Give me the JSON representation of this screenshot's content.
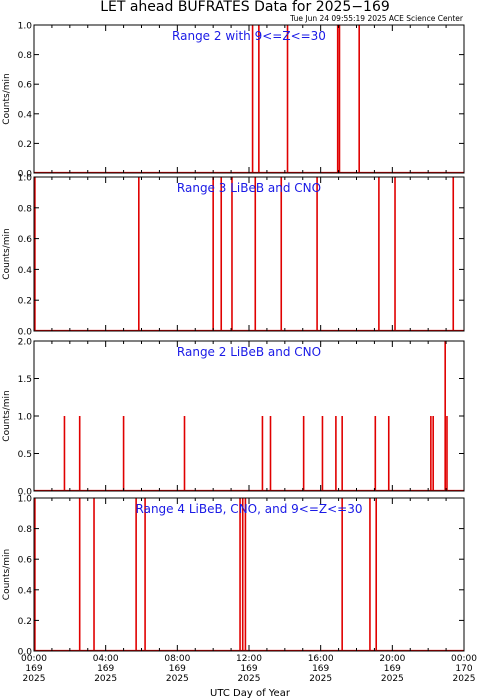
{
  "header": {
    "title": "LET ahead BUFRATES Data for 2025−169",
    "timestamp": "Tue Jun 24 09:55:19 2025 ACE Science Center"
  },
  "x_axis": {
    "label": "UTC Day of Year",
    "ticks": [
      {
        "time": "00:00",
        "doy": "169",
        "year": "2025",
        "hour": 0
      },
      {
        "time": "04:00",
        "doy": "169",
        "year": "2025",
        "hour": 4
      },
      {
        "time": "08:00",
        "doy": "169",
        "year": "2025",
        "hour": 8
      },
      {
        "time": "12:00",
        "doy": "169",
        "year": "2025",
        "hour": 12
      },
      {
        "time": "16:00",
        "doy": "169",
        "year": "2025",
        "hour": 16
      },
      {
        "time": "20:00",
        "doy": "169",
        "year": "2025",
        "hour": 20
      },
      {
        "time": "00:00",
        "doy": "170",
        "year": "2025",
        "hour": 24
      }
    ]
  },
  "colors": {
    "data": "#e00000",
    "panel_label": "#1a1ae6",
    "axes": "#000000"
  },
  "chart_data": [
    {
      "type": "bar",
      "panel_label": "Range 2 with 9<=Z<=30",
      "ylabel": "Counts/min",
      "xlim_hours": [
        0,
        24
      ],
      "ylim": [
        0,
        1.0
      ],
      "yticks": [
        "0.0",
        "0.2",
        "0.4",
        "0.6",
        "0.8",
        "1.0"
      ],
      "ytick_values": [
        0,
        0.2,
        0.4,
        0.6,
        0.8,
        1.0
      ],
      "spikes": [
        {
          "hour": 12.2,
          "value": 1
        },
        {
          "hour": 12.55,
          "value": 1
        },
        {
          "hour": 14.15,
          "value": 1
        },
        {
          "hour": 16.95,
          "value": 1
        },
        {
          "hour": 17.05,
          "value": 1
        },
        {
          "hour": 18.15,
          "value": 1
        }
      ]
    },
    {
      "type": "bar",
      "panel_label": "Range 3 LiBeB and CNO",
      "ylabel": "Counts/min",
      "xlim_hours": [
        0,
        24
      ],
      "ylim": [
        0,
        1.0
      ],
      "yticks": [
        "0.0",
        "0.2",
        "0.4",
        "0.6",
        "0.8",
        "1.0"
      ],
      "ytick_values": [
        0,
        0.2,
        0.4,
        0.6,
        0.8,
        1.0
      ],
      "spikes": [
        {
          "hour": 0.05,
          "value": 1
        },
        {
          "hour": 5.85,
          "value": 1
        },
        {
          "hour": 10.0,
          "value": 1
        },
        {
          "hour": 10.45,
          "value": 1
        },
        {
          "hour": 11.05,
          "value": 1
        },
        {
          "hour": 12.35,
          "value": 1
        },
        {
          "hour": 13.8,
          "value": 1
        },
        {
          "hour": 15.8,
          "value": 1
        },
        {
          "hour": 19.25,
          "value": 1
        },
        {
          "hour": 20.15,
          "value": 1
        },
        {
          "hour": 23.4,
          "value": 1
        }
      ]
    },
    {
      "type": "bar",
      "panel_label": "Range 2 LiBeB and CNO",
      "ylabel": "Counts/min",
      "xlim_hours": [
        0,
        24
      ],
      "ylim": [
        0,
        2.0
      ],
      "yticks": [
        "0.0",
        "0.5",
        "1.0",
        "1.5",
        "2.0"
      ],
      "ytick_values": [
        0,
        0.5,
        1.0,
        1.5,
        2.0
      ],
      "spikes": [
        {
          "hour": 1.7,
          "value": 1
        },
        {
          "hour": 2.55,
          "value": 1
        },
        {
          "hour": 5.0,
          "value": 1
        },
        {
          "hour": 8.4,
          "value": 1
        },
        {
          "hour": 12.75,
          "value": 1
        },
        {
          "hour": 13.2,
          "value": 1
        },
        {
          "hour": 15.05,
          "value": 1
        },
        {
          "hour": 16.1,
          "value": 1
        },
        {
          "hour": 16.85,
          "value": 1
        },
        {
          "hour": 17.2,
          "value": 1
        },
        {
          "hour": 19.05,
          "value": 1
        },
        {
          "hour": 19.8,
          "value": 1
        },
        {
          "hour": 22.15,
          "value": 1
        },
        {
          "hour": 22.28,
          "value": 1
        },
        {
          "hour": 22.95,
          "value": 2
        },
        {
          "hour": 23.05,
          "value": 1
        }
      ]
    },
    {
      "type": "bar",
      "panel_label": "Range 4 LiBeB, CNO, and 9<=Z<=30",
      "ylabel": "Counts/min",
      "xlim_hours": [
        0,
        24
      ],
      "ylim": [
        0,
        1.0
      ],
      "yticks": [
        "0.0",
        "0.2",
        "0.4",
        "0.6",
        "0.8",
        "1.0"
      ],
      "ytick_values": [
        0,
        0.2,
        0.4,
        0.6,
        0.8,
        1.0
      ],
      "spikes": [
        {
          "hour": 0.05,
          "value": 1
        },
        {
          "hour": 2.55,
          "value": 1
        },
        {
          "hour": 3.35,
          "value": 1
        },
        {
          "hour": 5.7,
          "value": 1
        },
        {
          "hour": 6.2,
          "value": 1
        },
        {
          "hour": 11.5,
          "value": 1
        },
        {
          "hour": 11.65,
          "value": 1
        },
        {
          "hour": 11.8,
          "value": 1
        },
        {
          "hour": 17.2,
          "value": 1
        },
        {
          "hour": 18.75,
          "value": 1
        },
        {
          "hour": 19.1,
          "value": 1
        }
      ]
    }
  ]
}
